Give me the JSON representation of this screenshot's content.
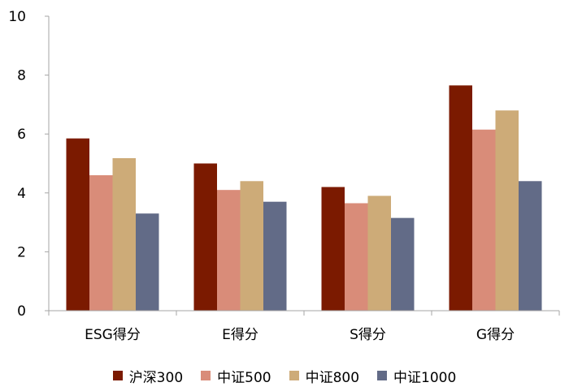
{
  "chart_data": {
    "type": "bar",
    "categories": [
      "ESG得分",
      "E得分",
      "S得分",
      "G得分"
    ],
    "series": [
      {
        "name": "沪深300",
        "color": "#7b1a00",
        "values": [
          5.85,
          5.0,
          4.2,
          7.65
        ]
      },
      {
        "name": "中证500",
        "color": "#d98c79",
        "values": [
          4.6,
          4.1,
          3.65,
          6.15
        ]
      },
      {
        "name": "中证800",
        "color": "#cdab78",
        "values": [
          5.18,
          4.4,
          3.9,
          6.8
        ]
      },
      {
        "name": "中证1000",
        "color": "#626b87",
        "values": [
          3.3,
          3.7,
          3.15,
          4.4
        ]
      }
    ],
    "ylim": [
      0,
      10
    ],
    "yticks": [
      0,
      2,
      4,
      6,
      8,
      10
    ],
    "title": "",
    "xlabel": "",
    "ylabel": "",
    "grid": false,
    "legend_position": "bottom"
  }
}
